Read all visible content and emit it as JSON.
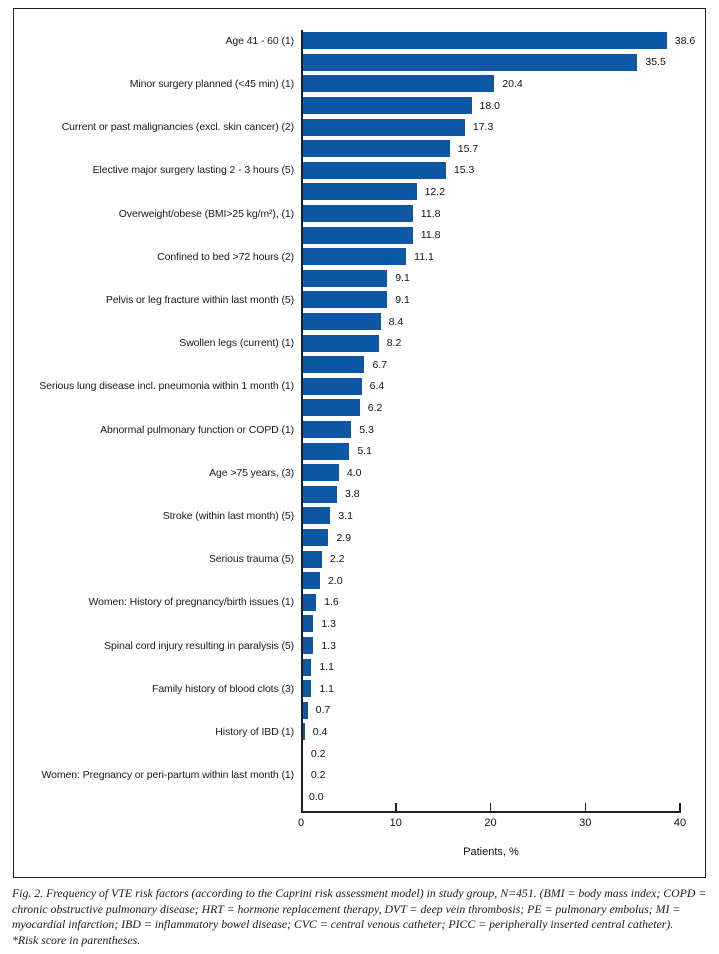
{
  "figure": {
    "caption": "Fig. 2. Frequency of VTE risk factors (according to the Caprini risk assessment model) in study group, N=451. (BMI = body mass index; COPD = chronic obstructive pulmonary disease; HRT = hormone replacement therapy, DVT = deep vein thrombosis; PE = pulmonary embolus; MI = myocardial infarction; IBD = inflammatory bowel disease; CVC = central venous catheter; PICC = peripherally inserted central catheter).",
    "note": "*Risk score in parentheses."
  },
  "chart_data": {
    "type": "bar",
    "orientation": "horizontal",
    "title": "",
    "xlabel": "Patients, %",
    "ylabel": "",
    "xlim": [
      0,
      40
    ],
    "xticks": [
      0,
      10,
      20,
      30,
      40
    ],
    "grid": false,
    "legend": "none",
    "bar_color": "#0d57a4",
    "bars": [
      {
        "label": "Age 41 - 60 (1)",
        "value": 38.6
      },
      {
        "label": "",
        "value": 35.5
      },
      {
        "label": "Minor surgery planned (<45 min) (1)",
        "value": 20.4
      },
      {
        "label": "",
        "value": 18.0
      },
      {
        "label": "Current or past malignancies (excl. skin cancer) (2)",
        "value": 17.3
      },
      {
        "label": "",
        "value": 15.7
      },
      {
        "label": "Elective major surgery lasting 2 - 3 hours (5)",
        "value": 15.3
      },
      {
        "label": "",
        "value": 12.2
      },
      {
        "label": "Overweight/obese (BMI>25 kg/m²), (1)",
        "value": 11.8
      },
      {
        "label": "",
        "value": 11.8
      },
      {
        "label": "Confined to bed >72 hours (2)",
        "value": 11.1
      },
      {
        "label": "",
        "value": 9.1
      },
      {
        "label": "Pelvis or leg fracture within last month (5)",
        "value": 9.1
      },
      {
        "label": "",
        "value": 8.4
      },
      {
        "label": "Swollen legs (current) (1)",
        "value": 8.2
      },
      {
        "label": "",
        "value": 6.7
      },
      {
        "label": "Serious lung disease incl. pneumonia within 1 month (1)",
        "value": 6.4
      },
      {
        "label": "",
        "value": 6.2
      },
      {
        "label": "Abnormal pulmonary function or COPD (1)",
        "value": 5.3
      },
      {
        "label": "",
        "value": 5.1
      },
      {
        "label": "Age >75 years, (3)",
        "value": 4.0
      },
      {
        "label": "",
        "value": 3.8
      },
      {
        "label": "Stroke (within last month) (5)",
        "value": 3.1
      },
      {
        "label": "",
        "value": 2.9
      },
      {
        "label": "Serious trauma (5)",
        "value": 2.2
      },
      {
        "label": "",
        "value": 2.0
      },
      {
        "label": "Women: History of pregnancy/birth issues (1)",
        "value": 1.6
      },
      {
        "label": "",
        "value": 1.3
      },
      {
        "label": "Spinal cord injury resulting in paralysis (5)",
        "value": 1.3
      },
      {
        "label": "",
        "value": 1.1
      },
      {
        "label": "Family history of blood clots (3)",
        "value": 1.1
      },
      {
        "label": "",
        "value": 0.7
      },
      {
        "label": "History of IBD (1)",
        "value": 0.4
      },
      {
        "label": "",
        "value": 0.2
      },
      {
        "label": "Women: Pregnancy or peri-partum within last month (1)",
        "value": 0.2
      },
      {
        "label": "",
        "value": 0.0
      }
    ]
  }
}
